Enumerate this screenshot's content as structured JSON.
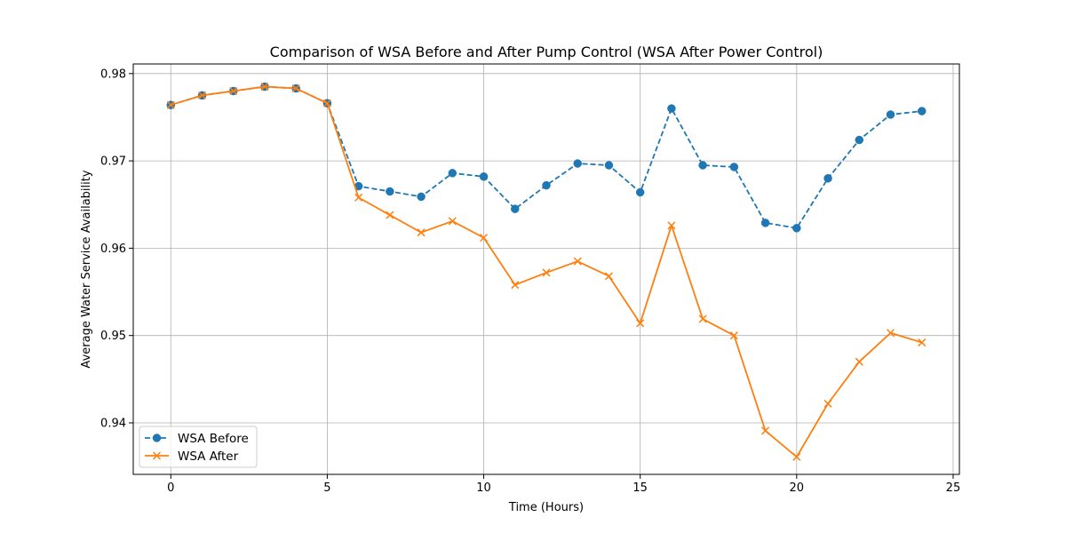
{
  "chart_data": {
    "type": "line",
    "title": "Comparison of WSA Before and After Pump Control (WSA After Power Control)",
    "xlabel": "Time (Hours)",
    "ylabel": "Average Water Service Availability",
    "xlim": [
      -1.2,
      25.2
    ],
    "ylim": [
      0.9341,
      0.9811
    ],
    "xticks": [
      0,
      5,
      10,
      15,
      20,
      25
    ],
    "xtick_labels": [
      "0",
      "5",
      "10",
      "15",
      "20",
      "25"
    ],
    "yticks": [
      0.94,
      0.95,
      0.96,
      0.97,
      0.98
    ],
    "ytick_labels": [
      "0.94",
      "0.95",
      "0.96",
      "0.97",
      "0.98"
    ],
    "grid": true,
    "legend_position": "lower-left",
    "x": [
      0,
      1,
      2,
      3,
      4,
      5,
      6,
      7,
      8,
      9,
      10,
      11,
      12,
      13,
      14,
      15,
      16,
      17,
      18,
      19,
      20,
      21,
      22,
      23,
      24
    ],
    "series": [
      {
        "name": "WSA Before",
        "color": "#1f77b4",
        "line_style": "dashed",
        "marker": "circle",
        "values": [
          0.9764,
          0.9775,
          0.978,
          0.9785,
          0.9783,
          0.9766,
          0.9671,
          0.9665,
          0.9659,
          0.9686,
          0.9682,
          0.9645,
          0.9672,
          0.9697,
          0.9695,
          0.9664,
          0.976,
          0.9695,
          0.9693,
          0.9629,
          0.9623,
          0.968,
          0.9724,
          0.9753,
          0.9757
        ]
      },
      {
        "name": "WSA After",
        "color": "#ff7f0e",
        "line_style": "solid",
        "marker": "x",
        "values": [
          0.9764,
          0.9775,
          0.978,
          0.9785,
          0.9783,
          0.9766,
          0.9658,
          0.9638,
          0.9618,
          0.9631,
          0.9612,
          0.9558,
          0.9572,
          0.9585,
          0.9568,
          0.9514,
          0.9626,
          0.9519,
          0.95,
          0.9391,
          0.9361,
          0.9422,
          0.947,
          0.9503,
          0.9492
        ]
      }
    ]
  }
}
